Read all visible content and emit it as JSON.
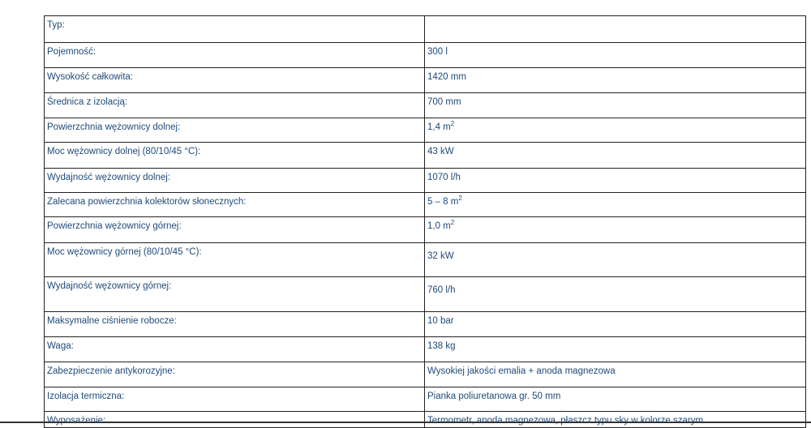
{
  "rows": [
    {
      "label": "Typ:",
      "value": ""
    },
    {
      "label": "Pojemność:",
      "value": "300 l"
    },
    {
      "label": "Wysokość całkowita:",
      "value": "1420 mm"
    },
    {
      "label": "Średnica z izolacją:",
      "value": "700 mm"
    },
    {
      "label": "Powierzchnia wężownicy dolnej:",
      "value": "1,4 m",
      "sup": "2"
    },
    {
      "label": "Moc wężownicy dolnej (80/10/45 °C):",
      "value": "43 kW"
    },
    {
      "label": "Wydajność wężownicy dolnej:",
      "value": "1070 l/h"
    },
    {
      "label": "Zalecana powierzchnia kolektorów słonecznych:",
      "value": "5 – 8 m",
      "sup": "2"
    },
    {
      "label": "Powierzchnia wężownicy górnej:",
      "value": "1,0 m",
      "sup": "2"
    },
    {
      "label": "Moc wężownicy górnej (80/10/45 °C):",
      "value": "32 kW"
    },
    {
      "label": "Wydajność wężownicy górnej:",
      "value": "760 l/h"
    },
    {
      "label": "Maksymalne ciśnienie robocze:",
      "value": "10 bar"
    },
    {
      "label": "Waga:",
      "value": "138 kg"
    },
    {
      "label": "Zabezpieczenie antykorozyjne:",
      "value": "Wysokiej jakości emalia + anoda magnezowa"
    },
    {
      "label": "Izolacja termiczna:",
      "value": "Pianka poliuretanowa gr. 50 mm"
    },
    {
      "label": "Wyposażenie:",
      "value": "Termometr, anoda magnezowa, płaszcz typu sky w kolorze szarym"
    }
  ],
  "colors": {
    "text": "#1f4a78",
    "border": "#222222"
  }
}
